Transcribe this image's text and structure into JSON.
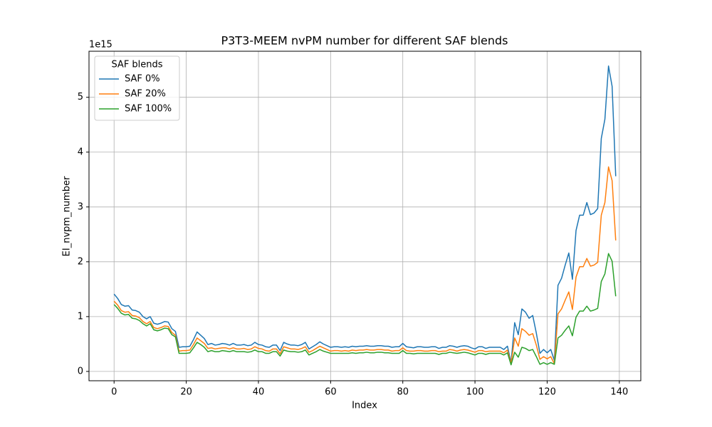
{
  "chart_data": {
    "type": "line",
    "title": "P3T3-MEEM nvPM number for different SAF blends",
    "x_label": "Index",
    "y_label": "EI_nvpm_number",
    "y_offset_text": "1e15",
    "legend_title": "SAF blends",
    "legend_position": "upper left",
    "grid": true,
    "xlim": [
      -6.95,
      145.95
    ],
    "xticks": [
      0,
      20,
      40,
      60,
      80,
      100,
      120,
      140
    ],
    "ylim": [
      -0.17,
      5.84
    ],
    "yticks": [
      0,
      1,
      2,
      3,
      4,
      5
    ],
    "x": [
      0,
      1,
      2,
      3,
      4,
      5,
      6,
      7,
      8,
      9,
      10,
      11,
      12,
      13,
      14,
      15,
      16,
      17,
      18,
      19,
      20,
      21,
      22,
      23,
      24,
      25,
      26,
      27,
      28,
      29,
      30,
      31,
      32,
      33,
      34,
      35,
      36,
      37,
      38,
      39,
      40,
      41,
      42,
      43,
      44,
      45,
      46,
      47,
      48,
      49,
      50,
      51,
      52,
      53,
      54,
      55,
      56,
      57,
      58,
      59,
      60,
      61,
      62,
      63,
      64,
      65,
      66,
      67,
      68,
      69,
      70,
      71,
      72,
      73,
      74,
      75,
      76,
      77,
      78,
      79,
      80,
      81,
      82,
      83,
      84,
      85,
      86,
      87,
      88,
      89,
      90,
      91,
      92,
      93,
      94,
      95,
      96,
      97,
      98,
      99,
      100,
      101,
      102,
      103,
      104,
      105,
      106,
      107,
      108,
      109,
      110,
      111,
      112,
      113,
      114,
      115,
      116,
      117,
      118,
      119,
      120,
      121,
      122,
      123,
      124,
      125,
      126,
      127,
      128,
      129,
      130,
      131,
      132,
      133,
      134,
      135,
      136,
      137,
      138,
      139
    ],
    "series": [
      {
        "name": "SAF 0%",
        "color": "#1f77b4",
        "values": [
          1.41,
          1.33,
          1.22,
          1.19,
          1.2,
          1.12,
          1.11,
          1.08,
          1.0,
          0.96,
          1.0,
          0.88,
          0.86,
          0.88,
          0.91,
          0.9,
          0.78,
          0.73,
          0.44,
          0.45,
          0.45,
          0.46,
          0.58,
          0.72,
          0.66,
          0.6,
          0.49,
          0.51,
          0.48,
          0.49,
          0.51,
          0.5,
          0.48,
          0.51,
          0.48,
          0.48,
          0.49,
          0.47,
          0.48,
          0.53,
          0.49,
          0.48,
          0.45,
          0.44,
          0.48,
          0.48,
          0.38,
          0.53,
          0.5,
          0.48,
          0.48,
          0.47,
          0.49,
          0.53,
          0.41,
          0.45,
          0.49,
          0.54,
          0.5,
          0.47,
          0.44,
          0.45,
          0.45,
          0.44,
          0.45,
          0.44,
          0.46,
          0.45,
          0.46,
          0.46,
          0.47,
          0.46,
          0.46,
          0.47,
          0.47,
          0.46,
          0.46,
          0.44,
          0.45,
          0.45,
          0.51,
          0.45,
          0.44,
          0.43,
          0.45,
          0.45,
          0.44,
          0.44,
          0.45,
          0.45,
          0.42,
          0.44,
          0.44,
          0.47,
          0.46,
          0.44,
          0.46,
          0.47,
          0.46,
          0.43,
          0.41,
          0.45,
          0.45,
          0.42,
          0.44,
          0.44,
          0.44,
          0.44,
          0.4,
          0.46,
          0.16,
          0.89,
          0.67,
          1.14,
          1.08,
          0.97,
          1.02,
          0.7,
          0.33,
          0.4,
          0.34,
          0.4,
          0.2,
          1.57,
          1.7,
          1.94,
          2.16,
          1.68,
          2.57,
          2.85,
          2.85,
          3.08,
          2.86,
          2.89,
          2.97,
          4.25,
          4.6,
          5.57,
          5.2,
          3.56
        ]
      },
      {
        "name": "SAF 20%",
        "color": "#ff7f0e",
        "values": [
          1.28,
          1.21,
          1.11,
          1.08,
          1.09,
          1.02,
          1.01,
          0.98,
          0.91,
          0.87,
          0.91,
          0.8,
          0.78,
          0.8,
          0.83,
          0.82,
          0.71,
          0.66,
          0.37,
          0.38,
          0.38,
          0.39,
          0.49,
          0.61,
          0.56,
          0.51,
          0.42,
          0.43,
          0.41,
          0.42,
          0.43,
          0.43,
          0.41,
          0.43,
          0.41,
          0.41,
          0.42,
          0.4,
          0.41,
          0.45,
          0.42,
          0.41,
          0.38,
          0.37,
          0.41,
          0.41,
          0.32,
          0.45,
          0.43,
          0.41,
          0.41,
          0.4,
          0.42,
          0.45,
          0.35,
          0.38,
          0.42,
          0.46,
          0.43,
          0.4,
          0.37,
          0.38,
          0.38,
          0.37,
          0.38,
          0.37,
          0.39,
          0.38,
          0.39,
          0.39,
          0.4,
          0.39,
          0.39,
          0.4,
          0.4,
          0.39,
          0.39,
          0.37,
          0.38,
          0.38,
          0.43,
          0.38,
          0.37,
          0.37,
          0.38,
          0.38,
          0.37,
          0.37,
          0.38,
          0.38,
          0.36,
          0.37,
          0.37,
          0.4,
          0.39,
          0.37,
          0.39,
          0.4,
          0.39,
          0.37,
          0.35,
          0.38,
          0.38,
          0.36,
          0.37,
          0.37,
          0.37,
          0.37,
          0.34,
          0.39,
          0.14,
          0.61,
          0.46,
          0.78,
          0.73,
          0.66,
          0.69,
          0.48,
          0.22,
          0.27,
          0.23,
          0.27,
          0.14,
          1.05,
          1.14,
          1.3,
          1.45,
          1.13,
          1.72,
          1.91,
          1.91,
          2.06,
          1.92,
          1.94,
          1.99,
          2.85,
          3.08,
          3.73,
          3.48,
          2.39
        ]
      },
      {
        "name": "SAF 100%",
        "color": "#2ca02c",
        "values": [
          1.22,
          1.15,
          1.06,
          1.03,
          1.04,
          0.97,
          0.96,
          0.93,
          0.87,
          0.83,
          0.87,
          0.76,
          0.74,
          0.76,
          0.79,
          0.78,
          0.67,
          0.63,
          0.33,
          0.33,
          0.33,
          0.34,
          0.43,
          0.53,
          0.49,
          0.44,
          0.36,
          0.38,
          0.36,
          0.36,
          0.38,
          0.37,
          0.36,
          0.38,
          0.36,
          0.36,
          0.36,
          0.35,
          0.36,
          0.39,
          0.36,
          0.36,
          0.33,
          0.33,
          0.36,
          0.36,
          0.28,
          0.39,
          0.37,
          0.36,
          0.36,
          0.35,
          0.36,
          0.39,
          0.3,
          0.33,
          0.36,
          0.4,
          0.37,
          0.35,
          0.33,
          0.33,
          0.33,
          0.33,
          0.33,
          0.33,
          0.34,
          0.33,
          0.34,
          0.34,
          0.35,
          0.34,
          0.34,
          0.35,
          0.35,
          0.34,
          0.34,
          0.33,
          0.33,
          0.33,
          0.38,
          0.33,
          0.33,
          0.32,
          0.33,
          0.33,
          0.33,
          0.33,
          0.33,
          0.33,
          0.31,
          0.33,
          0.33,
          0.35,
          0.34,
          0.33,
          0.34,
          0.35,
          0.34,
          0.32,
          0.3,
          0.33,
          0.33,
          0.31,
          0.33,
          0.33,
          0.33,
          0.33,
          0.3,
          0.34,
          0.12,
          0.35,
          0.26,
          0.44,
          0.42,
          0.38,
          0.4,
          0.27,
          0.13,
          0.16,
          0.13,
          0.16,
          0.13,
          0.61,
          0.66,
          0.75,
          0.83,
          0.65,
          0.99,
          1.1,
          1.1,
          1.19,
          1.1,
          1.12,
          1.15,
          1.64,
          1.78,
          2.15,
          2.01,
          1.37
        ]
      }
    ]
  }
}
